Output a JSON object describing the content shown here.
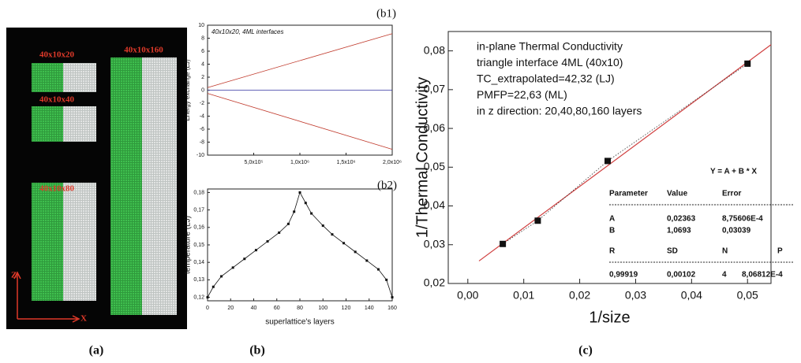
{
  "captions": [
    "(a)",
    "(b)",
    "(c)"
  ],
  "structures": {
    "labels": [
      "40x10x20",
      "40x10x40",
      "40x10x80",
      "40x10x160"
    ],
    "axes": [
      "Z",
      "X"
    ]
  },
  "chart_data": [
    {
      "type": "line",
      "panel": "(b1)",
      "annotation": "40x10x20, 4ML interfaces",
      "ylabel": "Energy exchange (LJ)",
      "x": [
        0,
        2000000
      ],
      "series": [
        {
          "color": "#c0392b",
          "values": [
            0.4,
            8.7
          ]
        },
        {
          "color": "#3030a0",
          "values": [
            0,
            0
          ]
        },
        {
          "color": "#c0392b",
          "values": [
            -0.5,
            -9.1
          ]
        }
      ],
      "xlim": [
        0,
        2000000
      ],
      "xticks": [
        {
          "value": 500000,
          "label": "5,0x10⁵"
        },
        {
          "value": 1000000,
          "label": "1,0x10⁶"
        },
        {
          "value": 1500000,
          "label": "1,5x10⁶"
        },
        {
          "value": 2000000,
          "label": "2,0x10⁶"
        }
      ],
      "ylim": [
        -10,
        10
      ],
      "yticks": [
        -10,
        -8,
        -6,
        -4,
        -2,
        0,
        2,
        4,
        6,
        8,
        10
      ]
    },
    {
      "type": "line",
      "panel": "(b2)",
      "markers": true,
      "xlabel": "superlattice's layers",
      "ylabel": "temperature (LJ)",
      "x": [
        0,
        5,
        12,
        22,
        32,
        42,
        52,
        62,
        70,
        75,
        80,
        85,
        90,
        100,
        108,
        118,
        128,
        138,
        148,
        155,
        160
      ],
      "series": [
        {
          "color": "#111111",
          "values": [
            0.12,
            0.126,
            0.132,
            0.137,
            0.142,
            0.147,
            0.152,
            0.157,
            0.162,
            0.169,
            0.18,
            0.174,
            0.168,
            0.161,
            0.156,
            0.151,
            0.146,
            0.141,
            0.136,
            0.13,
            0.12
          ]
        }
      ],
      "xlim": [
        0,
        160
      ],
      "xticks": [
        0,
        20,
        40,
        60,
        80,
        100,
        120,
        140,
        160
      ],
      "ylim": [
        0.118,
        0.182
      ],
      "yticks": [
        {
          "value": 0.12,
          "label": "0,12"
        },
        {
          "value": 0.13,
          "label": "0,13"
        },
        {
          "value": 0.14,
          "label": "0,14"
        },
        {
          "value": 0.15,
          "label": "0,15"
        },
        {
          "value": 0.16,
          "label": "0,16"
        },
        {
          "value": 0.17,
          "label": "0,17"
        },
        {
          "value": 0.18,
          "label": "0,18"
        }
      ]
    },
    {
      "type": "scatter",
      "xlabel": "1/size",
      "ylabel": "1/Thermal Conductivity",
      "annotation": [
        "in-plane Thermal Conductivity",
        "triangle interface 4ML (40x10)",
        "TC_extrapolated=42,32 (LJ)",
        "PMFP=22,63 (ML)",
        "in z direction: 20,40,80,160 layers"
      ],
      "x": [
        0.00625,
        0.0125,
        0.025,
        0.05
      ],
      "values": [
        0.0302,
        0.0362,
        0.0516,
        0.0767
      ],
      "color": "#111111",
      "fit": {
        "x": [
          0.002,
          0.0542
        ],
        "values": [
          0.0258,
          0.0816
        ],
        "color": "#d04040"
      },
      "table": {
        "formula": "Y = A + B * X",
        "header": [
          "Parameter",
          "Value",
          "Error"
        ],
        "rows": [
          [
            "A",
            "0,02363",
            "8,75606E-4"
          ],
          [
            "B",
            "1,0693",
            "0,03039"
          ]
        ],
        "header2": [
          "R",
          "SD",
          "N",
          "P"
        ],
        "row2": [
          "0,99919",
          "0,00102",
          "4",
          "8,06812E-4"
        ]
      },
      "xlim": [
        -0.0035,
        0.0542
      ],
      "xticks": [
        {
          "value": 0,
          "label": "0,00"
        },
        {
          "value": 0.01,
          "label": "0,01"
        },
        {
          "value": 0.02,
          "label": "0,02"
        },
        {
          "value": 0.03,
          "label": "0,03"
        },
        {
          "value": 0.04,
          "label": "0,04"
        },
        {
          "value": 0.05,
          "label": "0,05"
        }
      ],
      "ylim": [
        0.02,
        0.085
      ],
      "yticks": [
        {
          "value": 0.02,
          "label": "0,02"
        },
        {
          "value": 0.03,
          "label": "0,03"
        },
        {
          "value": 0.04,
          "label": "0,04"
        },
        {
          "value": 0.05,
          "label": "0,05"
        },
        {
          "value": 0.06,
          "label": "0,06"
        },
        {
          "value": 0.07,
          "label": "0,07"
        },
        {
          "value": 0.08,
          "label": "0,08"
        }
      ]
    }
  ]
}
